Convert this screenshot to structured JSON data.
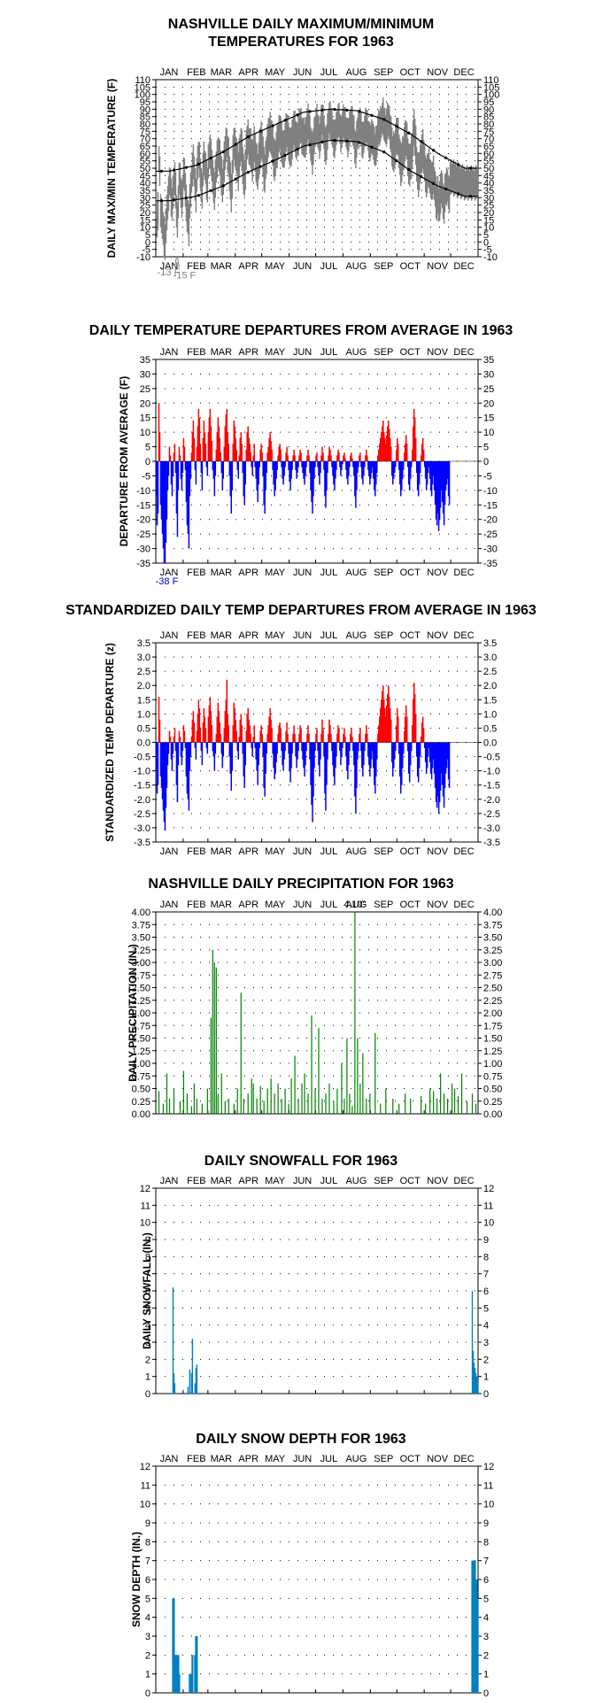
{
  "months": [
    "JAN",
    "FEB",
    "MAR",
    "APR",
    "MAY",
    "JUN",
    "JUL",
    "AUG",
    "SEP",
    "OCT",
    "NOV",
    "DEC"
  ],
  "colors": {
    "temp": "#808080",
    "normal": "#000000",
    "warm": "#ff0000",
    "cold": "#0000ff",
    "precip": "#008000",
    "snow": "#0080c0",
    "annotation_cold": "#0000c0"
  },
  "chart_data": [
    {
      "id": "temp",
      "type": "area",
      "title_line1": "NASHVILLE DAILY MAXIMUM/MINIMUM",
      "title_line2": "TEMPERATURES FOR 1963",
      "ylabel": "DAILY MAX/MIN TEMPERATURE (F)",
      "ylim": [
        -10,
        110
      ],
      "ytick_step": 5,
      "grid": true,
      "series_normal_max_months": [
        48,
        52,
        61,
        72,
        80,
        88,
        90,
        89,
        83,
        73,
        60,
        50
      ],
      "series_normal_min_months": [
        28,
        31,
        38,
        48,
        56,
        65,
        69,
        68,
        61,
        48,
        38,
        31
      ],
      "record_low_annotations": [
        "-13 F",
        "-15 F"
      ]
    },
    {
      "id": "dep",
      "type": "bar",
      "title": "DAILY TEMPERATURE DEPARTURES FROM AVERAGE IN 1963",
      "ylabel": "DEPARTURE FROM AVERAGE (F)",
      "ylim": [
        -35,
        35
      ],
      "ytick_step": 5,
      "grid": true,
      "annotation": "-38 F",
      "values": [
        -12,
        -22,
        -18,
        20,
        10,
        -15,
        -20,
        -25,
        -30,
        -35,
        -38,
        -28,
        -20,
        -10,
        -5,
        5,
        2,
        -8,
        -12,
        -5,
        3,
        6,
        -4,
        -18,
        -26,
        -10,
        5,
        2,
        -6,
        -10,
        -4,
        8,
        5,
        -3,
        -14,
        -22,
        -25,
        -30,
        -12,
        -6,
        3,
        10,
        14,
        8,
        -3,
        -8,
        5,
        12,
        18,
        15,
        6,
        -4,
        -10,
        8,
        14,
        10,
        6,
        -2,
        -5,
        10,
        15,
        18,
        12,
        7,
        -3,
        -6,
        -12,
        -5,
        4,
        10,
        15,
        12,
        8,
        3,
        -4,
        -10,
        -6,
        5,
        12,
        16,
        18,
        10,
        6,
        -5,
        -12,
        -18,
        -10,
        6,
        14,
        12,
        8,
        4,
        -3,
        -6,
        2,
        8,
        10,
        6,
        -4,
        -12,
        -15,
        -8,
        4,
        10,
        12,
        8,
        6,
        3,
        -2,
        -5,
        2,
        6,
        -2,
        -6,
        -10,
        -14,
        -8,
        -2,
        4,
        6,
        3,
        -5,
        -15,
        -18,
        -10,
        -4,
        3,
        5,
        8,
        10,
        7,
        4,
        -3,
        -8,
        -12,
        -10,
        -6,
        -3,
        2,
        5,
        6,
        4,
        -2,
        -6,
        -8,
        -5,
        -2,
        3,
        5,
        2,
        -3,
        -7,
        -10,
        -6,
        -3,
        2,
        4,
        2,
        -3,
        -6,
        -4,
        -2,
        2,
        4,
        3,
        -2,
        -4,
        -6,
        -8,
        -5,
        -2,
        2,
        4,
        2,
        -4,
        -10,
        -14,
        -18,
        -12,
        -6,
        -2,
        2,
        3,
        -2,
        -5,
        -8,
        -4,
        2,
        5,
        3,
        -3,
        -12,
        -16,
        -10,
        -4,
        2,
        5,
        4,
        2,
        -2,
        -5,
        -8,
        -10,
        -6,
        -3,
        2,
        4,
        3,
        -2,
        -5,
        -3,
        -1,
        2,
        3,
        1,
        -3,
        -6,
        -8,
        -5,
        -2,
        2,
        3,
        1,
        -2,
        -5,
        -12,
        -16,
        -10,
        -4,
        -2,
        2,
        3,
        -2,
        -6,
        -8,
        -5,
        -2,
        2,
        4,
        2,
        -3,
        -5,
        -8,
        -6,
        -4,
        -2,
        -6,
        -10,
        -12,
        -8,
        -4,
        2,
        4,
        6,
        8,
        10,
        12,
        14,
        10,
        8,
        6,
        9,
        12,
        14,
        11,
        8,
        5,
        -5,
        -8,
        -6,
        -4,
        -2,
        4,
        8,
        6,
        -3,
        -8,
        -12,
        -10,
        -6,
        -3,
        3,
        6,
        9,
        6,
        -2,
        -8,
        -10,
        -6,
        -2,
        4,
        12,
        18,
        15,
        8,
        -4,
        -10,
        -12,
        -8,
        -4,
        2,
        6,
        8,
        4,
        -2,
        -6,
        -10,
        -8,
        -4,
        -2,
        -6,
        -10,
        -12,
        -8,
        -5,
        -10,
        -15,
        -20,
        -22,
        -18,
        -24,
        -20,
        -16,
        -10,
        -14,
        -18,
        -22,
        -15,
        -10,
        -8,
        -6,
        -12,
        -15
      ]
    },
    {
      "id": "std",
      "type": "bar",
      "title": "STANDARDIZED DAILY TEMP DEPARTURES FROM AVERAGE IN 1963",
      "ylabel": "STANDARDIZED TEMP DEPARTURE (z)",
      "ylim": [
        -3.5,
        3.5
      ],
      "ytick_step": 0.5,
      "grid": true,
      "values": [
        -1.0,
        -1.8,
        -1.5,
        1.6,
        0.8,
        -1.2,
        -1.6,
        -2.0,
        -2.4,
        -2.8,
        -3.1,
        -2.3,
        -1.6,
        -0.8,
        -0.4,
        0.4,
        0.2,
        -0.6,
        -1.0,
        -0.4,
        0.2,
        0.5,
        -0.3,
        -1.5,
        -2.1,
        -0.8,
        0.4,
        0.2,
        -0.5,
        -0.8,
        -0.3,
        0.6,
        0.4,
        -0.2,
        -1.2,
        -1.8,
        -2.0,
        -2.4,
        -1.0,
        -0.5,
        0.2,
        0.8,
        1.1,
        0.7,
        -0.2,
        -0.6,
        0.4,
        1.0,
        1.5,
        1.2,
        0.5,
        -0.3,
        -0.8,
        0.7,
        1.2,
        0.9,
        0.5,
        -0.2,
        -0.4,
        0.9,
        1.3,
        1.6,
        1.1,
        0.6,
        -0.3,
        -0.5,
        -1.0,
        -0.4,
        0.3,
        0.9,
        1.4,
        1.1,
        0.7,
        0.3,
        -0.4,
        -0.9,
        -0.5,
        0.5,
        1.1,
        1.5,
        2.2,
        1.0,
        0.6,
        -0.5,
        -1.1,
        -1.7,
        -1.0,
        0.6,
        1.4,
        1.2,
        0.8,
        0.4,
        -0.3,
        -0.6,
        0.2,
        0.8,
        1.0,
        0.6,
        -0.4,
        -1.2,
        -1.6,
        -0.8,
        0.4,
        1.0,
        1.2,
        0.8,
        0.6,
        0.3,
        -0.2,
        -0.5,
        0.2,
        0.6,
        -0.2,
        -0.6,
        -1.0,
        -1.5,
        -0.8,
        -0.2,
        0.4,
        0.6,
        0.3,
        -0.5,
        -1.6,
        -1.9,
        -1.1,
        -0.4,
        0.3,
        0.6,
        0.9,
        1.2,
        0.8,
        0.5,
        -0.4,
        -0.9,
        -1.3,
        -1.1,
        -0.7,
        -0.4,
        0.3,
        0.6,
        0.7,
        0.5,
        -0.3,
        -0.8,
        -1.0,
        -0.6,
        -0.3,
        0.4,
        0.7,
        0.3,
        -0.4,
        -1.0,
        -1.4,
        -0.9,
        -0.4,
        0.3,
        0.6,
        0.3,
        -0.5,
        -0.9,
        -0.6,
        -0.3,
        0.3,
        0.6,
        0.5,
        -0.3,
        -0.6,
        -0.9,
        -1.2,
        -0.8,
        -0.3,
        0.3,
        0.6,
        0.3,
        -0.6,
        -1.5,
        -2.2,
        -2.8,
        -1.9,
        -0.9,
        -0.3,
        0.3,
        0.5,
        -0.3,
        -0.8,
        -1.2,
        -0.6,
        0.3,
        0.8,
        0.5,
        -0.5,
        -1.8,
        -2.4,
        -1.5,
        -0.6,
        0.3,
        0.8,
        0.6,
        0.3,
        -0.3,
        -0.8,
        -1.2,
        -1.5,
        -0.9,
        -0.5,
        0.3,
        0.6,
        0.5,
        -0.3,
        -0.8,
        -0.5,
        -0.2,
        0.3,
        0.5,
        0.2,
        -0.5,
        -1.0,
        -1.3,
        -0.8,
        -0.3,
        0.3,
        0.5,
        0.2,
        -0.3,
        -0.8,
        -1.9,
        -2.5,
        -1.6,
        -0.6,
        -0.3,
        0.3,
        0.5,
        -0.3,
        -0.9,
        -1.2,
        -0.8,
        -0.3,
        0.3,
        0.6,
        0.3,
        -0.5,
        -0.8,
        -1.2,
        -0.9,
        -0.6,
        -0.3,
        -0.9,
        -1.5,
        -1.8,
        -1.2,
        -0.6,
        0.3,
        0.6,
        0.9,
        1.2,
        1.5,
        1.8,
        2.0,
        1.5,
        1.2,
        0.9,
        1.3,
        1.7,
        2.0,
        1.6,
        1.2,
        0.8,
        -0.7,
        -1.2,
        -0.9,
        -0.6,
        -0.3,
        0.6,
        1.2,
        0.9,
        -0.4,
        -1.2,
        -1.8,
        -1.5,
        -0.9,
        -0.4,
        0.4,
        0.9,
        1.3,
        0.9,
        -0.3,
        -1.1,
        -1.4,
        -0.8,
        -0.3,
        0.6,
        1.5,
        2.1,
        1.7,
        1.0,
        -0.5,
        -1.2,
        -1.4,
        -0.9,
        -0.5,
        0.2,
        0.7,
        0.9,
        0.5,
        -0.2,
        -0.7,
        -1.1,
        -0.9,
        -0.5,
        -0.2,
        -0.7,
        -1.1,
        -1.3,
        -0.9,
        -0.6,
        -1.1,
        -1.6,
        -2.1,
        -2.3,
        -1.9,
        -2.5,
        -2.1,
        -1.7,
        -1.1,
        -1.5,
        -1.9,
        -2.3,
        -1.6,
        -1.1,
        -0.9,
        -0.6,
        -1.3,
        -1.6
      ]
    },
    {
      "id": "precip",
      "type": "bar",
      "title": "NASHVILLE DAILY PRECIPITATION FOR 1963",
      "ylabel": "DAILY PRECIPITATION (IN.)",
      "ylim": [
        0,
        4
      ],
      "ytick_step": 0.25,
      "grid": true,
      "annotation": "4.10\"",
      "events": [
        [
          3,
          0.45
        ],
        [
          8,
          0.2
        ],
        [
          12,
          0.8
        ],
        [
          15,
          0.3
        ],
        [
          20,
          0.5
        ],
        [
          27,
          0.25
        ],
        [
          31,
          0.85
        ],
        [
          35,
          0.4
        ],
        [
          40,
          0.15
        ],
        [
          43,
          0.6
        ],
        [
          46,
          0.3
        ],
        [
          52,
          0.2
        ],
        [
          58,
          0.5
        ],
        [
          62,
          1.9
        ],
        [
          64,
          3.25
        ],
        [
          66,
          3.0
        ],
        [
          68,
          2.9
        ],
        [
          70,
          0.4
        ],
        [
          74,
          0.8
        ],
        [
          78,
          0.25
        ],
        [
          82,
          0.3
        ],
        [
          88,
          0.2
        ],
        [
          92,
          0.5
        ],
        [
          96,
          2.4
        ],
        [
          99,
          0.3
        ],
        [
          104,
          0.4
        ],
        [
          108,
          0.7
        ],
        [
          110,
          0.6
        ],
        [
          114,
          0.3
        ],
        [
          118,
          0.55
        ],
        [
          122,
          0.25
        ],
        [
          126,
          0.5
        ],
        [
          130,
          0.7
        ],
        [
          134,
          0.4
        ],
        [
          138,
          0.6
        ],
        [
          142,
          0.3
        ],
        [
          146,
          0.5
        ],
        [
          150,
          0.2
        ],
        [
          153,
          0.7
        ],
        [
          157,
          1.15
        ],
        [
          161,
          0.3
        ],
        [
          165,
          0.6
        ],
        [
          168,
          0.8
        ],
        [
          172,
          0.4
        ],
        [
          176,
          1.95
        ],
        [
          180,
          0.5
        ],
        [
          184,
          1.7
        ],
        [
          188,
          0.3
        ],
        [
          192,
          0.4
        ],
        [
          196,
          0.6
        ],
        [
          201,
          0.25
        ],
        [
          205,
          0.5
        ],
        [
          210,
          1.0
        ],
        [
          213,
          0.3
        ],
        [
          216,
          1.5
        ],
        [
          219,
          0.4
        ],
        [
          222,
          0.15
        ],
        [
          225,
          4.1
        ],
        [
          228,
          1.5
        ],
        [
          231,
          0.6
        ],
        [
          234,
          1.2
        ],
        [
          238,
          0.3
        ],
        [
          242,
          0.4
        ],
        [
          248,
          1.6
        ],
        [
          254,
          0.2
        ],
        [
          260,
          0.5
        ],
        [
          268,
          0.3
        ],
        [
          275,
          0.2
        ],
        [
          282,
          0.4
        ],
        [
          288,
          0.3
        ],
        [
          300,
          0.35
        ],
        [
          305,
          0.2
        ],
        [
          310,
          0.5
        ],
        [
          314,
          0.45
        ],
        [
          318,
          0.3
        ],
        [
          322,
          0.8
        ],
        [
          326,
          0.4
        ],
        [
          330,
          0.3
        ],
        [
          335,
          0.6
        ],
        [
          338,
          0.5
        ],
        [
          342,
          0.35
        ],
        [
          346,
          0.8
        ],
        [
          352,
          0.25
        ],
        [
          358,
          0.4
        ],
        [
          362,
          0.2
        ]
      ]
    },
    {
      "id": "snow",
      "type": "bar",
      "title": "DAILY SNOWFALL FOR 1963",
      "ylabel": "DAILY SNOWFALL (IN.)",
      "ylim": [
        0,
        12
      ],
      "ytick_step": 1,
      "grid": true,
      "events": [
        [
          19,
          6.2
        ],
        [
          20,
          1.2
        ],
        [
          21,
          0.6
        ],
        [
          36,
          0.4
        ],
        [
          38,
          1.4
        ],
        [
          40,
          1.2
        ],
        [
          41,
          3.2
        ],
        [
          44,
          0.6
        ],
        [
          45,
          1.5
        ],
        [
          46,
          1.7
        ],
        [
          358,
          6.0
        ],
        [
          359,
          2.5
        ],
        [
          360,
          1.8
        ],
        [
          361,
          1.5
        ],
        [
          362,
          1.2
        ],
        [
          363,
          1.0
        ],
        [
          364,
          0.8
        ]
      ]
    },
    {
      "id": "depth",
      "type": "bar",
      "title": "DAILY SNOW DEPTH FOR 1963",
      "ylabel": "SNOW DEPTH (IN.)",
      "ylim": [
        0,
        12
      ],
      "ytick_step": 1,
      "grid": true,
      "events": [
        [
          19,
          5
        ],
        [
          20,
          5
        ],
        [
          21,
          2
        ],
        [
          22,
          2
        ],
        [
          23,
          2
        ],
        [
          24,
          2
        ],
        [
          25,
          2
        ],
        [
          26,
          1
        ],
        [
          38,
          1
        ],
        [
          40,
          1
        ],
        [
          41,
          2
        ],
        [
          44,
          2
        ],
        [
          45,
          3
        ],
        [
          46,
          3
        ],
        [
          358,
          7
        ],
        [
          359,
          7
        ],
        [
          360,
          7
        ],
        [
          361,
          7
        ],
        [
          362,
          6
        ],
        [
          363,
          6
        ],
        [
          364,
          5
        ]
      ]
    }
  ]
}
